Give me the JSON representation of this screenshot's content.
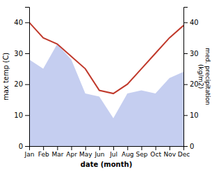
{
  "chart_data": {
    "type": "line",
    "categories": [
      "Jan",
      "Feb",
      "Mar",
      "Apr",
      "May",
      "Jun",
      "Jul",
      "Aug",
      "Sep",
      "Oct",
      "Nov",
      "Dec"
    ],
    "xlabel": "date (month)",
    "ylabel": "max temp (C)",
    "y2label": "med. precipitation\n(kg/m2)",
    "ylim": [
      0,
      45
    ],
    "yticks": [
      0,
      10,
      20,
      30,
      40
    ],
    "y2lim": [
      0,
      45
    ],
    "y2ticks": [
      0,
      10,
      20,
      30,
      40
    ],
    "series": [
      {
        "type": "area",
        "axis": "y2",
        "color": "#c5cef0",
        "values": [
          28,
          25,
          33,
          28,
          17,
          16,
          9,
          17,
          18,
          17,
          22,
          24
        ]
      },
      {
        "type": "line",
        "color": "#c0392b",
        "values": [
          40,
          35,
          33,
          29,
          25,
          18,
          17,
          20,
          25,
          30,
          35,
          39
        ]
      }
    ]
  }
}
